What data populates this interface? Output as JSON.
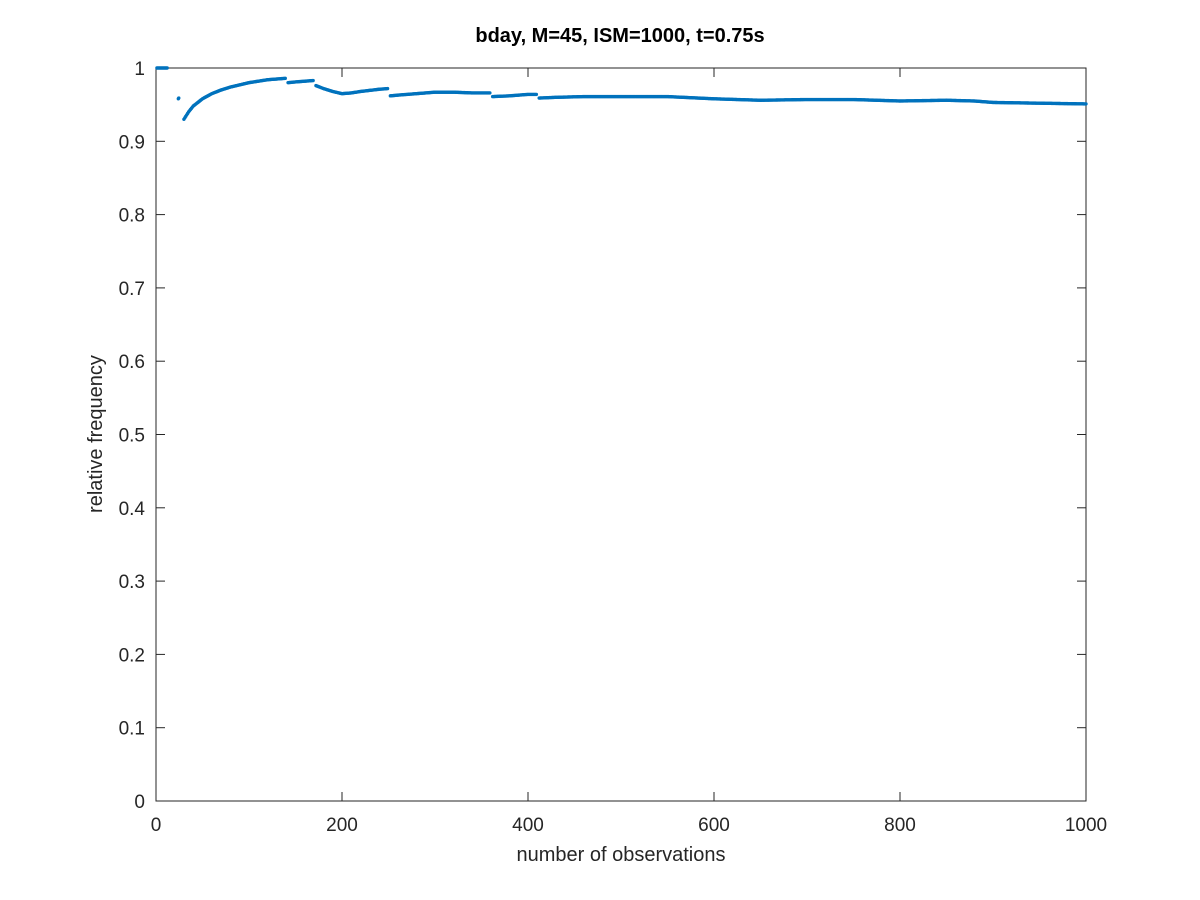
{
  "chart_data": {
    "type": "scatter",
    "title": "bday, M=45, ISM=1000, t=0.75s",
    "xlabel": "number of observations",
    "ylabel": "relative frequency",
    "xlim": [
      0,
      1000
    ],
    "ylim": [
      0,
      1
    ],
    "xticks": [
      0,
      200,
      400,
      600,
      800,
      1000
    ],
    "yticks": [
      0,
      0.1,
      0.2,
      0.3,
      0.4,
      0.5,
      0.6,
      0.7,
      0.8,
      0.9,
      1
    ],
    "xtick_labels": [
      "0",
      "200",
      "400",
      "600",
      "800",
      "1000"
    ],
    "ytick_labels": [
      "0",
      "0.1",
      "0.2",
      "0.3",
      "0.4",
      "0.5",
      "0.6",
      "0.7",
      "0.8",
      "0.9",
      "1"
    ],
    "grid": false,
    "box": true,
    "series": [
      {
        "color": "#0072bd",
        "marker": "dot",
        "x": [
          1,
          5,
          10,
          13,
          16,
          18,
          20,
          22,
          24,
          25,
          27,
          30,
          35,
          40,
          50,
          60,
          70,
          80,
          100,
          120,
          140,
          142,
          150,
          160,
          170,
          172,
          180,
          190,
          200,
          210,
          220,
          240,
          250,
          252,
          260,
          280,
          300,
          320,
          340,
          360,
          362,
          380,
          400,
          410,
          412,
          430,
          460,
          500,
          550,
          600,
          650,
          700,
          750,
          800,
          850,
          880,
          900,
          950,
          1000
        ],
        "y": [
          1.0,
          1.0,
          1.0,
          1.0,
          0.915,
          0.93,
          0.943,
          0.952,
          0.958,
          0.96,
          0.92,
          0.93,
          0.94,
          0.948,
          0.958,
          0.965,
          0.97,
          0.974,
          0.98,
          0.984,
          0.986,
          0.98,
          0.981,
          0.982,
          0.983,
          0.976,
          0.972,
          0.968,
          0.965,
          0.966,
          0.968,
          0.971,
          0.972,
          0.962,
          0.963,
          0.965,
          0.967,
          0.967,
          0.966,
          0.966,
          0.961,
          0.962,
          0.964,
          0.964,
          0.959,
          0.96,
          0.961,
          0.961,
          0.961,
          0.958,
          0.956,
          0.957,
          0.957,
          0.955,
          0.956,
          0.955,
          0.953,
          0.952,
          0.951
        ]
      }
    ]
  }
}
